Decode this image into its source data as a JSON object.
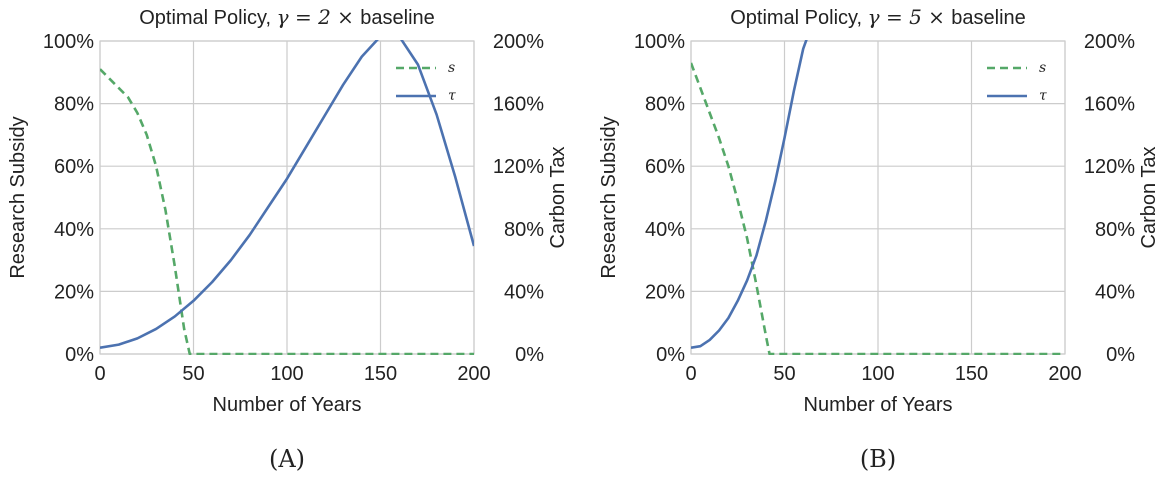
{
  "colors": {
    "s_series": "#55a868",
    "tau_series": "#4c72b0",
    "grid": "#cccccc",
    "frame": "#cccccc",
    "text": "#222222"
  },
  "chart_data": [
    {
      "type": "line",
      "caption": "(A)",
      "title_prefix": "Optimal Policy, ",
      "title_math": "γ = 2 × ",
      "title_suffix": "baseline",
      "xlabel": "Number of Years",
      "ylabel_left": "Research Subsidy",
      "ylabel_right": "Carbon Tax",
      "xlim": [
        0,
        200
      ],
      "ylim_left": [
        0,
        1.0
      ],
      "ylim_right": [
        0,
        2.0
      ],
      "x_ticks": [
        "0",
        "50",
        "100",
        "150",
        "200"
      ],
      "y_left_ticks": [
        "0%",
        "20%",
        "40%",
        "60%",
        "80%",
        "100%"
      ],
      "y_right_ticks": [
        "0%",
        "40%",
        "80%",
        "120%",
        "160%",
        "200%"
      ],
      "grid": true,
      "legend_position": "top-right",
      "series": [
        {
          "name": "s",
          "axis": "left",
          "style": "dashed",
          "x": [
            0,
            5,
            10,
            15,
            20,
            25,
            30,
            35,
            40,
            45,
            48,
            50,
            100,
            150,
            200
          ],
          "y": [
            0.91,
            0.88,
            0.85,
            0.82,
            0.77,
            0.7,
            0.6,
            0.46,
            0.28,
            0.08,
            0.0,
            0.0,
            0.0,
            0.0,
            0.0
          ]
        },
        {
          "name": "τ",
          "axis": "right",
          "style": "solid",
          "x": [
            0,
            10,
            20,
            30,
            40,
            50,
            60,
            70,
            80,
            90,
            100,
            110,
            120,
            130,
            140,
            150,
            160,
            170,
            180,
            190,
            200
          ],
          "y": [
            0.04,
            0.06,
            0.1,
            0.16,
            0.24,
            0.34,
            0.46,
            0.6,
            0.76,
            0.94,
            1.12,
            1.32,
            1.52,
            1.72,
            1.9,
            2.03,
            2.03,
            1.85,
            1.53,
            1.13,
            0.69
          ]
        }
      ]
    },
    {
      "type": "line",
      "caption": "(B)",
      "title_prefix": "Optimal Policy, ",
      "title_math": "γ = 5 × ",
      "title_suffix": "baseline",
      "xlabel": "Number of Years",
      "ylabel_left": "Research Subsidy",
      "ylabel_right": "Carbon Tax",
      "xlim": [
        0,
        200
      ],
      "ylim_left": [
        0,
        1.0
      ],
      "ylim_right": [
        0,
        2.0
      ],
      "x_ticks": [
        "0",
        "50",
        "100",
        "150",
        "200"
      ],
      "y_left_ticks": [
        "0%",
        "20%",
        "40%",
        "60%",
        "80%",
        "100%"
      ],
      "y_right_ticks": [
        "0%",
        "40%",
        "80%",
        "120%",
        "160%",
        "200%"
      ],
      "grid": true,
      "legend_position": "top-right",
      "series": [
        {
          "name": "s",
          "axis": "left",
          "style": "dashed",
          "x": [
            0,
            5,
            10,
            15,
            20,
            25,
            30,
            35,
            40,
            42,
            50,
            100,
            150,
            200
          ],
          "y": [
            0.93,
            0.85,
            0.77,
            0.69,
            0.6,
            0.49,
            0.37,
            0.22,
            0.06,
            0.0,
            0.0,
            0.0,
            0.0,
            0.0
          ]
        },
        {
          "name": "τ",
          "axis": "right",
          "style": "solid",
          "x": [
            0,
            5,
            10,
            15,
            20,
            25,
            30,
            35,
            40,
            45,
            50,
            55,
            60,
            63
          ],
          "y": [
            0.04,
            0.05,
            0.09,
            0.15,
            0.23,
            0.34,
            0.47,
            0.63,
            0.85,
            1.1,
            1.38,
            1.68,
            1.95,
            2.05
          ]
        }
      ]
    }
  ]
}
